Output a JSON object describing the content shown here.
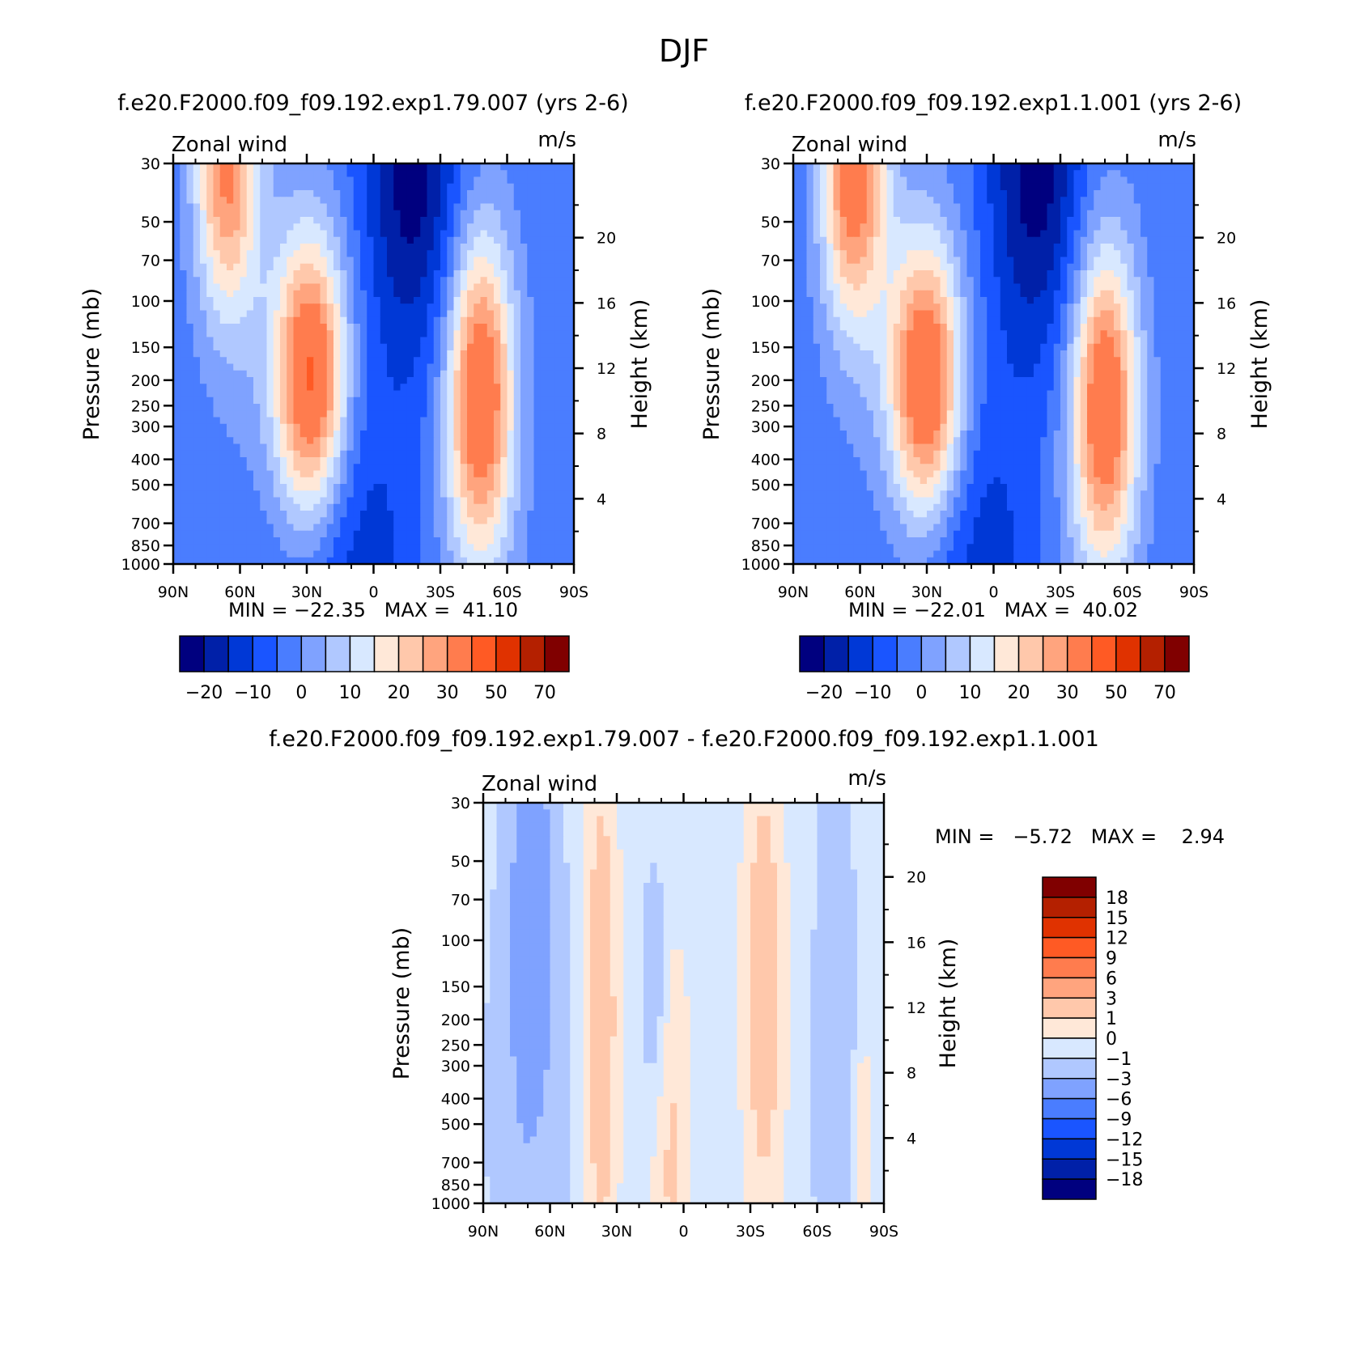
{
  "figure_title": "DJF",
  "chart_data": [
    {
      "type": "heatmap",
      "subtype": "filled-contour",
      "title": "f.e20.F2000.f09_f09.192.exp1.79.007 (yrs 2-6)",
      "left_label": "Zonal wind",
      "right_label": "m/s",
      "xlabel": "",
      "ylabel": "Pressure (mb)",
      "y2label": "Height (km)",
      "x_ticks": [
        "90N",
        "60N",
        "30N",
        "0",
        "30S",
        "60S",
        "90S"
      ],
      "x_range": [
        90,
        -90
      ],
      "y_ticks": [
        30,
        50,
        70,
        100,
        150,
        200,
        250,
        300,
        400,
        500,
        700,
        850,
        1000
      ],
      "y_range": [
        30,
        1000
      ],
      "y2_ticks": [
        4,
        8,
        12,
        16,
        20
      ],
      "stats": "MIN = -22.35   MAX =  41.10",
      "min": -22.35,
      "max": 41.1,
      "colorbar": {
        "orientation": "horizontal",
        "tick_labels": [
          "-20",
          "-10",
          "0",
          "10",
          "20",
          "30",
          "50",
          "70"
        ],
        "colors": [
          "#00007f",
          "#0020a8",
          "#0038d6",
          "#1a55ff",
          "#4a7dff",
          "#7fa2ff",
          "#b0c8ff",
          "#d8e8ff",
          "#ffe8d8",
          "#ffc8ab",
          "#ffa47e",
          "#ff7c4e",
          "#ff5a24",
          "#e03200",
          "#b42000",
          "#800000"
        ]
      },
      "jets": [
        {
          "lat": 27,
          "pressure": 200,
          "peak": 41.1
        },
        {
          "lat": -47,
          "pressure": 220,
          "peak": 38
        },
        {
          "lat": 66,
          "pressure": 30,
          "peak": 35
        },
        {
          "lat": -18,
          "pressure": 30,
          "peak": -22.35
        }
      ]
    },
    {
      "type": "heatmap",
      "subtype": "filled-contour",
      "title": "f.e20.F2000.f09_f09.192.exp1.1.001 (yrs 2-6)",
      "left_label": "Zonal wind",
      "right_label": "m/s",
      "xlabel": "",
      "ylabel": "Pressure (mb)",
      "y2label": "Height (km)",
      "x_ticks": [
        "90N",
        "60N",
        "30N",
        "0",
        "30S",
        "60S",
        "90S"
      ],
      "x_range": [
        90,
        -90
      ],
      "y_ticks": [
        30,
        50,
        70,
        100,
        150,
        200,
        250,
        300,
        400,
        500,
        700,
        850,
        1000
      ],
      "y_range": [
        30,
        1000
      ],
      "y2_ticks": [
        4,
        8,
        12,
        16,
        20
      ],
      "stats": "MIN = -22.01   MAX =  40.02",
      "min": -22.01,
      "max": 40.02,
      "colorbar": {
        "orientation": "horizontal",
        "tick_labels": [
          "-20",
          "-10",
          "0",
          "10",
          "20",
          "30",
          "50",
          "70"
        ],
        "colors": [
          "#00007f",
          "#0020a8",
          "#0038d6",
          "#1a55ff",
          "#4a7dff",
          "#7fa2ff",
          "#b0c8ff",
          "#d8e8ff",
          "#ffe8d8",
          "#ffc8ab",
          "#ffa47e",
          "#ff7c4e",
          "#ff5a24",
          "#e03200",
          "#b42000",
          "#800000"
        ]
      },
      "jets": [
        {
          "lat": 30,
          "pressure": 210,
          "peak": 40.02
        },
        {
          "lat": -50,
          "pressure": 240,
          "peak": 37
        },
        {
          "lat": 62,
          "pressure": 35,
          "peak": 38
        },
        {
          "lat": -20,
          "pressure": 30,
          "peak": -22.01
        }
      ]
    },
    {
      "type": "heatmap",
      "subtype": "filled-contour-difference",
      "title": "f.e20.F2000.f09_f09.192.exp1.79.007 - f.e20.F2000.f09_f09.192.exp1.1.001",
      "left_label": "Zonal wind",
      "right_label": "m/s",
      "xlabel": "",
      "ylabel": "Pressure (mb)",
      "y2label": "Height (km)",
      "x_ticks": [
        "90N",
        "60N",
        "30N",
        "0",
        "30S",
        "60S",
        "90S"
      ],
      "x_range": [
        90,
        -90
      ],
      "y_ticks": [
        30,
        50,
        70,
        100,
        150,
        200,
        250,
        300,
        400,
        500,
        700,
        850,
        1000
      ],
      "y_range": [
        30,
        1000
      ],
      "y2_ticks": [
        4,
        8,
        12,
        16,
        20
      ],
      "stats": "MIN =   -5.72   MAX =    2.94",
      "min": -5.72,
      "max": 2.94,
      "colorbar": {
        "orientation": "vertical",
        "tick_labels": [
          "18",
          "15",
          "12",
          "9",
          "6",
          "3",
          "1",
          "0",
          "-1",
          "-3",
          "-6",
          "-9",
          "-12",
          "-15",
          "-18"
        ],
        "colors": [
          "#800000",
          "#b42000",
          "#e03200",
          "#ff5a24",
          "#ff7c4e",
          "#ffa47e",
          "#ffc8ab",
          "#ffe8d8",
          "#d8e8ff",
          "#b0c8ff",
          "#7fa2ff",
          "#4a7dff",
          "#1a55ff",
          "#0038d6",
          "#0020a8",
          "#00007f"
        ]
      }
    }
  ]
}
